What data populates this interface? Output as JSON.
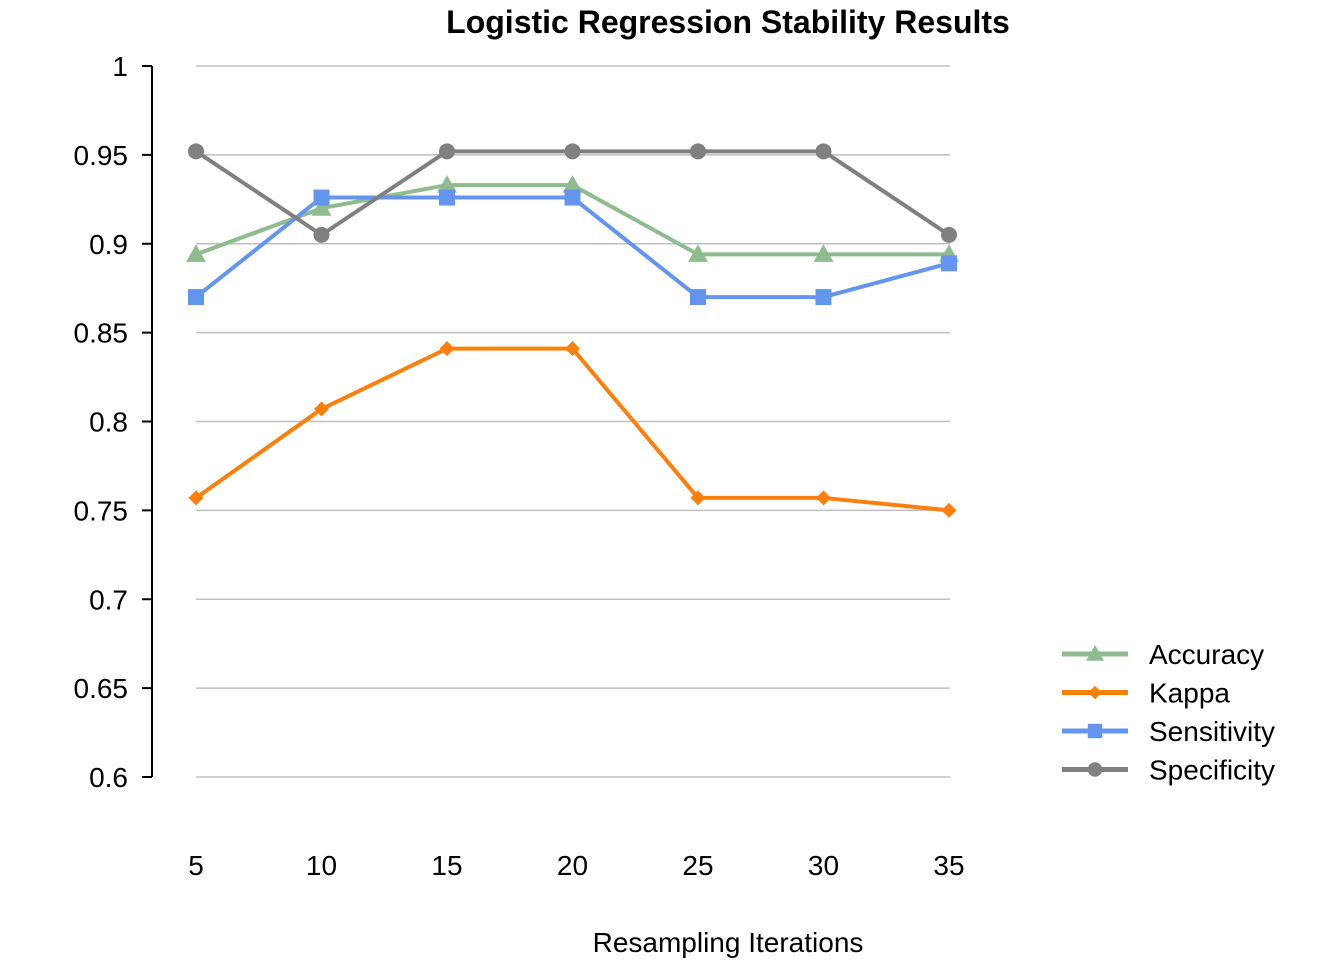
{
  "chart_data": {
    "type": "line",
    "title": "Logistic Regression Stability Results",
    "xlabel": "Resampling Iterations",
    "ylabel": "",
    "categories": [
      "5",
      "10",
      "15",
      "20",
      "25",
      "30",
      "35"
    ],
    "ylim": [
      0.6,
      1
    ],
    "yticks": [
      "0.6",
      "0.65",
      "0.7",
      "0.75",
      "0.8",
      "0.85",
      "0.9",
      "0.95",
      "1"
    ],
    "grid": true,
    "legend_position": "right",
    "series": [
      {
        "name": "Accuracy",
        "color": "#8fbc8f",
        "marker": "triangle",
        "values": [
          0.894,
          0.92,
          0.933,
          0.933,
          0.894,
          0.894,
          0.894
        ]
      },
      {
        "name": "Kappa",
        "color": "#ff7f0e",
        "marker": "diamond",
        "values": [
          0.757,
          0.807,
          0.841,
          0.841,
          0.757,
          0.757,
          0.75
        ]
      },
      {
        "name": "Sensitivity",
        "color": "#6495ed",
        "marker": "square",
        "values": [
          0.87,
          0.926,
          0.926,
          0.926,
          0.87,
          0.87,
          0.889
        ]
      },
      {
        "name": "Specificity",
        "color": "#808080",
        "marker": "circle",
        "values": [
          0.952,
          0.905,
          0.952,
          0.952,
          0.952,
          0.952,
          0.905
        ]
      }
    ]
  }
}
